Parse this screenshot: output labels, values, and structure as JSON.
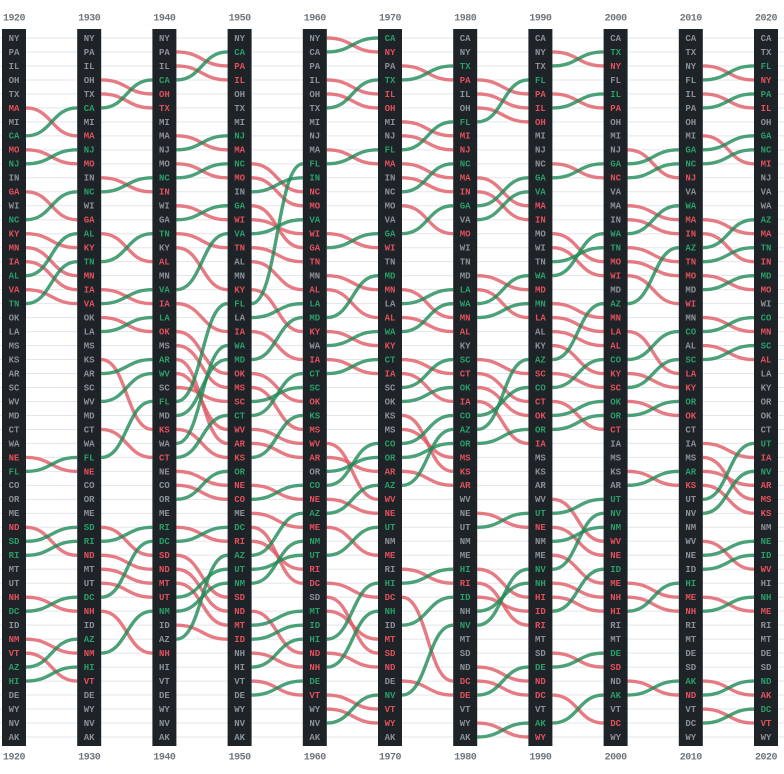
{
  "chart_data": {
    "type": "bump",
    "categories": [
      "1920",
      "1930",
      "1940",
      "1950",
      "1960",
      "1970",
      "1980",
      "1990",
      "2000",
      "2010",
      "2020"
    ],
    "rankings": [
      [
        "NY",
        "PA",
        "IL",
        "OH",
        "TX",
        "MA",
        "MI",
        "CA",
        "MO",
        "NJ",
        "IN",
        "GA",
        "WI",
        "NC",
        "KY",
        "MN",
        "IA",
        "AL",
        "VA",
        "TN",
        "OK",
        "LA",
        "MS",
        "KS",
        "AR",
        "SC",
        "WV",
        "MD",
        "CT",
        "WA",
        "NE",
        "FL",
        "CO",
        "OR",
        "ME",
        "ND",
        "SD",
        "RI",
        "MT",
        "UT",
        "NH",
        "DC",
        "ID",
        "NM",
        "VT",
        "AZ",
        "HI",
        "DE",
        "WY",
        "NV",
        "AK"
      ],
      [
        "NY",
        "PA",
        "IL",
        "OH",
        "TX",
        "CA",
        "MI",
        "MA",
        "NJ",
        "MO",
        "IN",
        "NC",
        "WI",
        "GA",
        "AL",
        "KY",
        "TN",
        "MN",
        "IA",
        "VA",
        "OK",
        "LA",
        "MS",
        "KS",
        "AR",
        "SC",
        "WV",
        "MD",
        "CT",
        "WA",
        "FL",
        "NE",
        "CO",
        "OR",
        "ME",
        "SD",
        "RI",
        "ND",
        "MT",
        "UT",
        "DC",
        "NH",
        "ID",
        "AZ",
        "NM",
        "HI",
        "VT",
        "DE",
        "WY",
        "NV",
        "AK"
      ],
      [
        "NY",
        "PA",
        "IL",
        "CA",
        "OH",
        "TX",
        "MI",
        "MA",
        "NJ",
        "MO",
        "NC",
        "IN",
        "WI",
        "GA",
        "TN",
        "KY",
        "AL",
        "MN",
        "VA",
        "IA",
        "LA",
        "OK",
        "MS",
        "AR",
        "WV",
        "SC",
        "FL",
        "MD",
        "KS",
        "WA",
        "CT",
        "NE",
        "CO",
        "OR",
        "ME",
        "RI",
        "DC",
        "SD",
        "ND",
        "MT",
        "UT",
        "NM",
        "ID",
        "AZ",
        "NH",
        "HI",
        "VT",
        "DE",
        "WY",
        "NV",
        "AK"
      ],
      [
        "NY",
        "CA",
        "PA",
        "IL",
        "OH",
        "TX",
        "MI",
        "NJ",
        "MA",
        "NC",
        "MO",
        "IN",
        "GA",
        "WI",
        "VA",
        "TN",
        "AL",
        "MN",
        "KY",
        "FL",
        "LA",
        "IA",
        "WA",
        "MD",
        "OK",
        "MS",
        "SC",
        "CT",
        "WV",
        "AR",
        "KS",
        "OR",
        "NE",
        "CO",
        "ME",
        "DC",
        "RI",
        "AZ",
        "UT",
        "NM",
        "SD",
        "ND",
        "MT",
        "ID",
        "NH",
        "HI",
        "VT",
        "DE",
        "WY",
        "NV",
        "AK"
      ],
      [
        "NY",
        "CA",
        "PA",
        "IL",
        "OH",
        "TX",
        "MI",
        "NJ",
        "MA",
        "FL",
        "IN",
        "NC",
        "MO",
        "VA",
        "WI",
        "GA",
        "TN",
        "MN",
        "AL",
        "LA",
        "MD",
        "KY",
        "WA",
        "IA",
        "CT",
        "SC",
        "OK",
        "KS",
        "MS",
        "WV",
        "AR",
        "OR",
        "CO",
        "NE",
        "AZ",
        "ME",
        "NM",
        "UT",
        "RI",
        "DC",
        "SD",
        "MT",
        "ID",
        "HI",
        "ND",
        "NH",
        "DE",
        "VT",
        "WY",
        "NV",
        "AK"
      ],
      [
        "CA",
        "NY",
        "PA",
        "TX",
        "IL",
        "OH",
        "MI",
        "NJ",
        "FL",
        "MA",
        "IN",
        "NC",
        "MO",
        "VA",
        "GA",
        "WI",
        "TN",
        "MD",
        "MN",
        "LA",
        "AL",
        "WA",
        "KY",
        "CT",
        "IA",
        "SC",
        "OK",
        "KS",
        "MS",
        "CO",
        "OR",
        "AR",
        "AZ",
        "WV",
        "NE",
        "UT",
        "NM",
        "ME",
        "RI",
        "HI",
        "DC",
        "NH",
        "ID",
        "MT",
        "SD",
        "ND",
        "DE",
        "NV",
        "VT",
        "WY",
        "AK"
      ],
      [
        "CA",
        "NY",
        "TX",
        "PA",
        "IL",
        "OH",
        "FL",
        "MI",
        "NJ",
        "NC",
        "MA",
        "IN",
        "GA",
        "VA",
        "MO",
        "WI",
        "TN",
        "MD",
        "LA",
        "WA",
        "MN",
        "AL",
        "KY",
        "SC",
        "CT",
        "OK",
        "IA",
        "CO",
        "AZ",
        "OR",
        "MS",
        "KS",
        "AR",
        "WV",
        "NE",
        "UT",
        "NM",
        "ME",
        "HI",
        "RI",
        "ID",
        "NH",
        "NV",
        "MT",
        "SD",
        "ND",
        "DC",
        "DE",
        "VT",
        "WY",
        "AK"
      ],
      [
        "CA",
        "NY",
        "TX",
        "FL",
        "PA",
        "IL",
        "OH",
        "MI",
        "NJ",
        "NC",
        "GA",
        "VA",
        "MA",
        "IN",
        "MO",
        "WI",
        "TN",
        "WA",
        "MD",
        "MN",
        "LA",
        "AL",
        "KY",
        "AZ",
        "SC",
        "CO",
        "CT",
        "OK",
        "OR",
        "IA",
        "MS",
        "KS",
        "AR",
        "WV",
        "UT",
        "NE",
        "NM",
        "ME",
        "NV",
        "NH",
        "HI",
        "ID",
        "RI",
        "MT",
        "SD",
        "DE",
        "ND",
        "DC",
        "VT",
        "AK",
        "WY"
      ],
      [
        "CA",
        "TX",
        "NY",
        "FL",
        "IL",
        "PA",
        "OH",
        "MI",
        "NJ",
        "GA",
        "NC",
        "VA",
        "MA",
        "IN",
        "WA",
        "TN",
        "MO",
        "WI",
        "MD",
        "AZ",
        "MN",
        "LA",
        "AL",
        "CO",
        "KY",
        "SC",
        "OK",
        "OR",
        "CT",
        "IA",
        "MS",
        "KS",
        "AR",
        "UT",
        "NV",
        "NM",
        "WV",
        "NE",
        "ID",
        "ME",
        "NH",
        "HI",
        "RI",
        "MT",
        "DE",
        "SD",
        "ND",
        "AK",
        "VT",
        "DC",
        "WY"
      ],
      [
        "CA",
        "TX",
        "NY",
        "FL",
        "IL",
        "PA",
        "OH",
        "MI",
        "GA",
        "NC",
        "NJ",
        "VA",
        "WA",
        "MA",
        "IN",
        "AZ",
        "TN",
        "MO",
        "MD",
        "WI",
        "MN",
        "CO",
        "AL",
        "SC",
        "LA",
        "KY",
        "OR",
        "OK",
        "CT",
        "IA",
        "MS",
        "AR",
        "KS",
        "UT",
        "NV",
        "NM",
        "WV",
        "NE",
        "ID",
        "HI",
        "ME",
        "NH",
        "RI",
        "MT",
        "DE",
        "SD",
        "AK",
        "ND",
        "VT",
        "DC",
        "WY"
      ],
      [
        "CA",
        "TX",
        "FL",
        "NY",
        "PA",
        "IL",
        "OH",
        "GA",
        "NC",
        "MI",
        "NJ",
        "VA",
        "WA",
        "AZ",
        "MA",
        "TN",
        "IN",
        "MD",
        "MO",
        "WI",
        "CO",
        "MN",
        "SC",
        "AL",
        "LA",
        "KY",
        "OR",
        "OK",
        "CT",
        "UT",
        "IA",
        "NV",
        "AR",
        "MS",
        "KS",
        "NM",
        "NE",
        "ID",
        "WV",
        "HI",
        "NH",
        "ME",
        "RI",
        "MT",
        "DE",
        "SD",
        "ND",
        "AK",
        "DC",
        "VT",
        "WY"
      ]
    ]
  }
}
